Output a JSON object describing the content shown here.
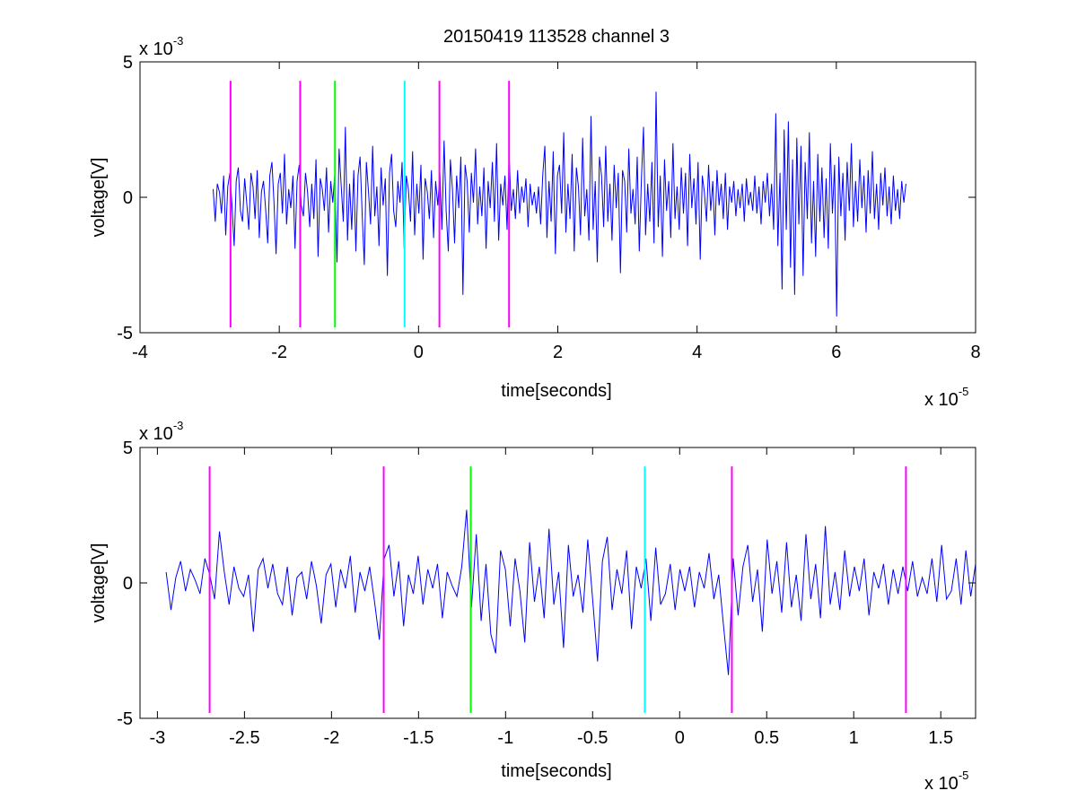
{
  "figure": {
    "title": "20150419 113528 channel 3"
  },
  "chart_data": [
    {
      "type": "line",
      "title": "20150419 113528 channel 3",
      "xlabel": "time[seconds]",
      "ylabel": "voltage[V]",
      "x_exponent_label": "x 10",
      "x_exponent": "-5",
      "y_exponent_label": "x 10",
      "y_exponent": "-3",
      "xlim": [
        -4,
        8
      ],
      "ylim": [
        -5,
        5
      ],
      "x_ticks": [
        -4,
        -2,
        0,
        2,
        4,
        6,
        8
      ],
      "x_tick_labels": [
        "-4",
        "-2",
        "0",
        "2",
        "4",
        "6",
        "8"
      ],
      "y_ticks": [
        -5,
        0,
        5
      ],
      "y_tick_labels": [
        "-5",
        "0",
        "5"
      ],
      "grid": false,
      "signal": {
        "color": "#0000ff",
        "x_start": -2.95,
        "x_end": 7.0,
        "samples": [
          0.3,
          -0.9,
          0.5,
          0.2,
          -0.6,
          0.8,
          -1.4,
          0.4,
          0.9,
          -0.3,
          -1.8,
          0.6,
          1.1,
          -0.5,
          -0.9,
          0.7,
          -0.2,
          -1.2,
          0.9,
          0.4,
          -0.8,
          1.0,
          -1.5,
          0.2,
          0.6,
          -0.4,
          -1.7,
          0.8,
          1.3,
          -0.2,
          -2.1,
          0.5,
          0.9,
          -0.6,
          1.6,
          -1.0,
          0.3,
          -0.4,
          0.8,
          -1.9,
          0.6,
          1.2,
          -0.3,
          -0.7,
          0.9,
          0.2,
          -1.1,
          0.5,
          -0.8,
          1.4,
          -2.2,
          0.7,
          0.3,
          -0.5,
          1.1,
          -1.3,
          0.6,
          -0.2,
          0.9,
          -2.4,
          1.8,
          0.4,
          -0.9,
          2.6,
          -1.6,
          0.5,
          -1.2,
          1.0,
          -2.0,
          0.8,
          1.5,
          -0.6,
          -2.5,
          1.3,
          0.2,
          -1.0,
          1.9,
          -0.7,
          0.4,
          -1.8,
          1.1,
          -0.3,
          0.7,
          -2.9,
          0.9,
          1.6,
          -0.5,
          -1.1,
          0.6,
          -0.2,
          1.3,
          -1.9,
          0.8,
          0.3,
          -0.9,
          1.7,
          -1.4,
          0.5,
          -0.6,
          1.2,
          -2.3,
          0.7,
          0.2,
          -0.8,
          1.0,
          -1.5,
          0.6,
          -0.3,
          0.9,
          -1.2,
          2.1,
          -0.5,
          -2.0,
          1.4,
          0.3,
          -1.7,
          0.8,
          -0.4,
          1.5,
          -3.6,
          1.2,
          0.6,
          -1.3,
          0.9,
          -0.2,
          1.8,
          -1.0,
          0.4,
          -0.7,
          1.1,
          -1.9,
          0.6,
          -0.4,
          1.3,
          -0.9,
          2.0,
          -1.6,
          0.5,
          -0.3,
          0.8,
          -1.2,
          1.6,
          -0.5,
          0.3,
          -0.8,
          1.0,
          -0.6,
          0.4,
          -0.2,
          0.7,
          -1.1,
          0.5,
          -0.3,
          0.2,
          -0.6,
          0.4,
          -1.0,
          0.8,
          1.9,
          -1.5,
          0.6,
          -0.9,
          1.7,
          -2.1,
          0.8,
          1.2,
          -0.6,
          2.4,
          -1.3,
          0.5,
          -0.8,
          1.6,
          -2.0,
          1.1,
          0.4,
          -1.4,
          2.2,
          -0.7,
          0.3,
          -1.6,
          3.0,
          -1.2,
          0.6,
          -2.4,
          1.5,
          0.8,
          -1.1,
          1.9,
          -0.9,
          0.5,
          -1.6,
          1.2,
          -0.4,
          0.9,
          -2.8,
          1.0,
          0.6,
          -1.3,
          1.8,
          -0.6,
          0.3,
          -1.0,
          1.5,
          -2.0,
          0.7,
          2.6,
          -1.4,
          0.5,
          -0.9,
          1.3,
          -1.7,
          3.9,
          -1.1,
          0.8,
          -2.2,
          1.4,
          -0.5,
          0.6,
          -1.5,
          2.0,
          -0.8,
          0.4,
          -1.2,
          1.1,
          -0.6,
          0.9,
          -1.8,
          1.6,
          -0.4,
          0.7,
          -1.0,
          1.3,
          -2.3,
          0.8,
          0.2,
          -0.9,
          1.2,
          -0.5,
          0.6,
          -1.4,
          1.0,
          -0.3,
          0.5,
          -0.8,
          0.9,
          -1.2,
          0.4,
          -0.2,
          0.6,
          -0.7,
          0.3,
          -0.4,
          0.5,
          -0.9,
          0.7,
          -0.3,
          0.2,
          -0.5,
          0.8,
          -0.6,
          0.4,
          -1.0,
          0.6,
          -0.2,
          0.9,
          -0.7,
          0.5,
          -1.2,
          3.1,
          -1.8,
          0.9,
          -3.4,
          2.5,
          -1.2,
          2.8,
          -2.6,
          1.4,
          -3.6,
          2.2,
          -1.0,
          1.9,
          -2.9,
          1.3,
          -0.8,
          2.4,
          -1.7,
          0.6,
          -2.2,
          1.6,
          -0.9,
          1.1,
          -1.5,
          0.7,
          -1.9,
          2.0,
          -0.6,
          1.2,
          -4.4,
          1.5,
          -0.7,
          0.9,
          -1.6,
          1.3,
          -0.5,
          2.0,
          -1.1,
          0.6,
          -0.9,
          1.4,
          -0.4,
          0.8,
          -1.3,
          1.0,
          -0.6,
          1.7,
          -0.8,
          0.5,
          -1.2,
          0.9,
          -0.3,
          1.1,
          -0.7,
          0.4,
          -1.0,
          0.8,
          -0.5,
          0.3,
          -0.8,
          0.6,
          -0.2,
          0.5
        ]
      },
      "markers": [
        {
          "x": -2.7,
          "color": "#ff00ff"
        },
        {
          "x": -1.7,
          "color": "#ff00ff"
        },
        {
          "x": -1.2,
          "color": "#00ff00"
        },
        {
          "x": -0.2,
          "color": "#00ffff"
        },
        {
          "x": 0.3,
          "color": "#ff00ff"
        },
        {
          "x": 1.3,
          "color": "#ff00ff"
        }
      ],
      "marker_ylim": [
        -4.8,
        4.3
      ]
    },
    {
      "type": "line",
      "title": "",
      "xlabel": "time[seconds]",
      "ylabel": "voltage[V]",
      "x_exponent_label": "x 10",
      "x_exponent": "-5",
      "y_exponent_label": "x 10",
      "y_exponent": "-3",
      "xlim": [
        -3.1,
        1.7
      ],
      "ylim": [
        -5,
        5
      ],
      "x_ticks": [
        -3,
        -2.5,
        -2,
        -1.5,
        -1,
        -0.5,
        0,
        0.5,
        1,
        1.5
      ],
      "x_tick_labels": [
        "-3",
        "-2.5",
        "-2",
        "-1.5",
        "-1",
        "-0.5",
        "0",
        "0.5",
        "1",
        "1.5"
      ],
      "y_ticks": [
        -5,
        0,
        5
      ],
      "y_tick_labels": [
        "-5",
        "0",
        "5"
      ],
      "grid": false,
      "signal": {
        "color": "#0000ff",
        "x_start": -2.95,
        "x_end": 1.7,
        "samples": [
          0.4,
          -1.0,
          0.2,
          0.8,
          -0.3,
          0.5,
          0.1,
          -0.4,
          0.9,
          0.3,
          -0.6,
          1.9,
          0.4,
          -0.8,
          0.6,
          -0.2,
          -0.5,
          0.3,
          -1.8,
          0.5,
          0.9,
          -0.2,
          0.7,
          -0.4,
          -0.8,
          0.6,
          -1.2,
          0.2,
          0.4,
          -0.6,
          0.8,
          -0.1,
          -1.5,
          0.3,
          0.7,
          -0.9,
          0.5,
          -0.2,
          1.0,
          -1.1,
          0.4,
          -0.3,
          0.6,
          -0.7,
          -2.1,
          0.9,
          1.4,
          -0.5,
          0.8,
          -1.6,
          0.3,
          -0.4,
          1.0,
          -0.8,
          0.5,
          -0.2,
          0.7,
          -1.3,
          0.4,
          -0.1,
          -0.5,
          0.6,
          2.7,
          -0.9,
          1.8,
          -1.4,
          0.7,
          -1.9,
          -2.6,
          1.2,
          0.5,
          -1.6,
          0.9,
          -0.3,
          -2.2,
          1.5,
          -0.7,
          0.6,
          -1.3,
          2.0,
          -0.8,
          0.4,
          -2.4,
          1.4,
          -0.5,
          0.3,
          -1.1,
          1.6,
          -0.6,
          -2.9,
          0.8,
          1.7,
          -1.0,
          0.5,
          -0.4,
          1.2,
          -1.7,
          0.6,
          -0.2,
          0.9,
          -1.4,
          1.3,
          -0.8,
          -0.4,
          0.7,
          -1.0,
          0.5,
          -0.3,
          0.6,
          -0.9,
          0.4,
          -0.2,
          1.1,
          -0.6,
          0.3,
          -1.6,
          -3.4,
          0.9,
          -1.2,
          0.6,
          1.4,
          -0.7,
          0.5,
          -1.8,
          1.6,
          -0.4,
          0.8,
          -1.1,
          1.5,
          -0.9,
          0.3,
          -1.4,
          1.8,
          -0.6,
          0.7,
          -1.3,
          2.1,
          -0.8,
          0.4,
          -1.0,
          1.2,
          -0.5,
          0.6,
          -0.3,
          0.9,
          -1.2,
          0.4,
          -0.2,
          0.7,
          -0.8,
          0.5,
          -0.4,
          0.6,
          -0.3,
          0.8,
          -0.5,
          0.2,
          -0.4,
          0.9,
          -0.7,
          1.4,
          -0.6,
          -0.3,
          0.9,
          -0.8,
          1.2,
          -0.5,
          0.7
        ]
      },
      "markers": [
        {
          "x": -2.7,
          "color": "#ff00ff"
        },
        {
          "x": -1.7,
          "color": "#ff00ff"
        },
        {
          "x": -1.2,
          "color": "#00ff00"
        },
        {
          "x": -0.2,
          "color": "#00ffff"
        },
        {
          "x": 0.3,
          "color": "#ff00ff"
        },
        {
          "x": 1.3,
          "color": "#ff00ff"
        }
      ],
      "marker_ylim": [
        -4.8,
        4.3
      ]
    }
  ]
}
